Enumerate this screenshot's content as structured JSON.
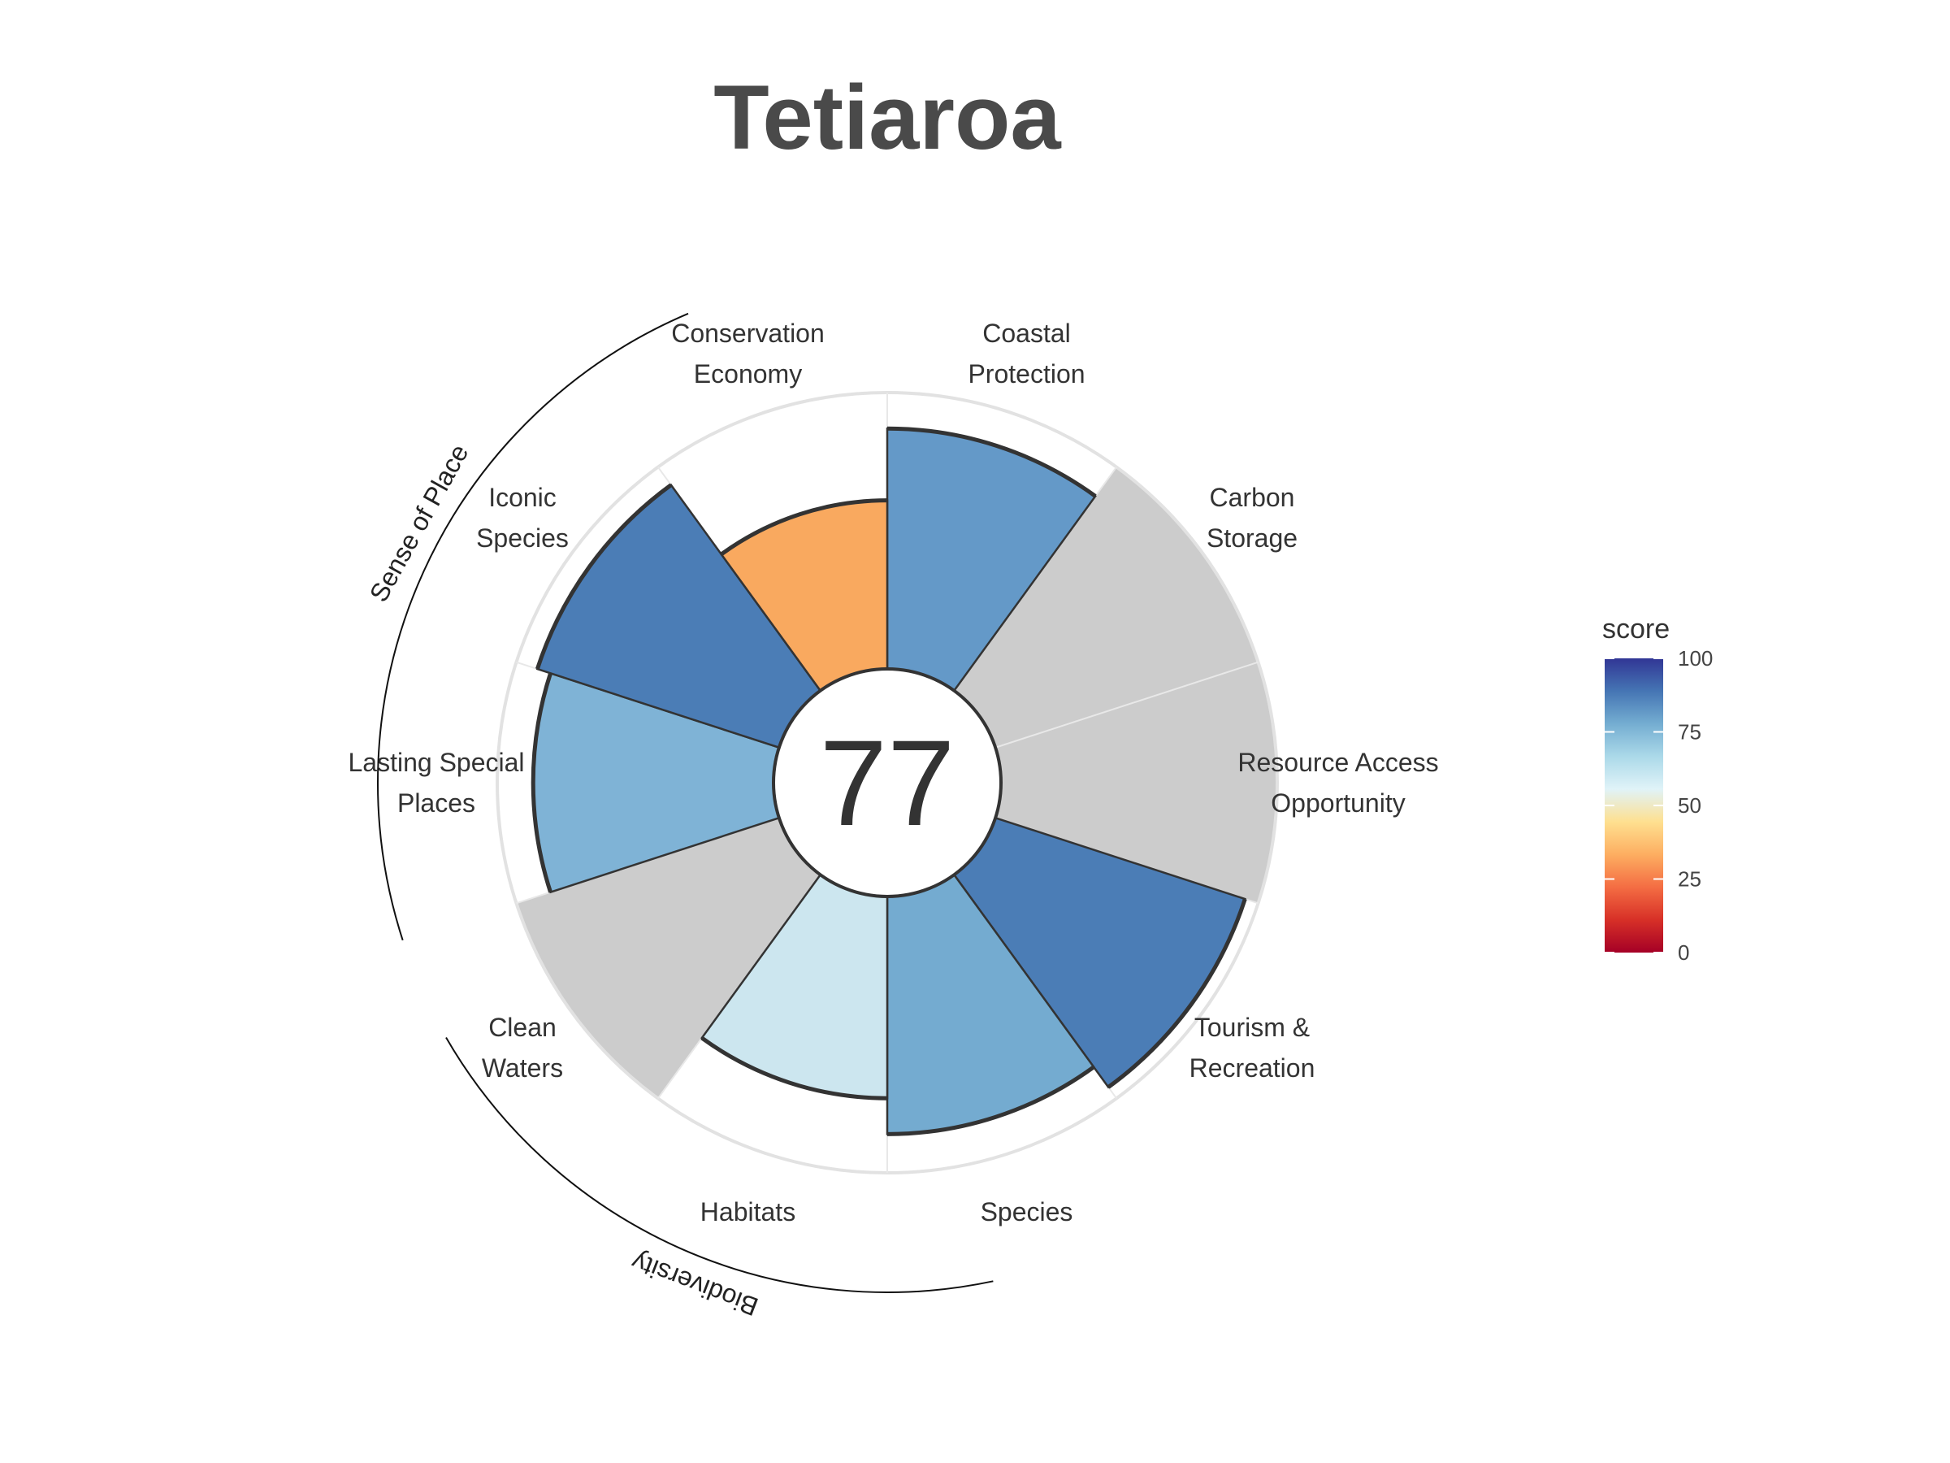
{
  "chart_data": {
    "type": "polar-bar",
    "title": "Tetiaroa",
    "center_score": "77",
    "rlim": [
      0,
      100
    ],
    "goals": [
      {
        "label": [
          "Coastal",
          "Protection"
        ],
        "value": 87,
        "color": "#6499c8",
        "na": false
      },
      {
        "label": [
          "Carbon",
          "Storage"
        ],
        "value": null,
        "color": "#cccccc",
        "na": true
      },
      {
        "label": [
          "Resource Access",
          "Opportunity"
        ],
        "value": null,
        "color": "#cccccc",
        "na": true
      },
      {
        "label": [
          "Tourism &",
          "Recreation"
        ],
        "value": 95,
        "color": "#4b7db6",
        "na": false
      },
      {
        "label": [
          "Species"
        ],
        "value": 86,
        "color": "#74abd0",
        "na": false
      },
      {
        "label": [
          "Habitats"
        ],
        "value": 73,
        "color": "#cce6ef",
        "na": false
      },
      {
        "label": [
          "Clean",
          "Waters"
        ],
        "value": null,
        "color": "#cccccc",
        "na": true
      },
      {
        "label": [
          "Lasting Special",
          "Places"
        ],
        "value": 87,
        "color": "#7fb3d6",
        "na": false
      },
      {
        "label": [
          "Iconic",
          "Species"
        ],
        "value": 92,
        "color": "#4b7db6",
        "na": false
      },
      {
        "label": [
          "Conservation",
          "Economy"
        ],
        "value": 61,
        "color": "#f9a95f",
        "na": false
      }
    ],
    "groups": [
      "Sense of Place",
      "Biodiversity"
    ],
    "legend": {
      "title": "score",
      "ticks": [
        "100",
        "75",
        "50",
        "25",
        "0"
      ],
      "colors": [
        "#a50026",
        "#d73027",
        "#f46d43",
        "#fdae61",
        "#fee090",
        "#e0f3f8",
        "#abd9e9",
        "#74add1",
        "#4575b4",
        "#313695"
      ]
    }
  }
}
